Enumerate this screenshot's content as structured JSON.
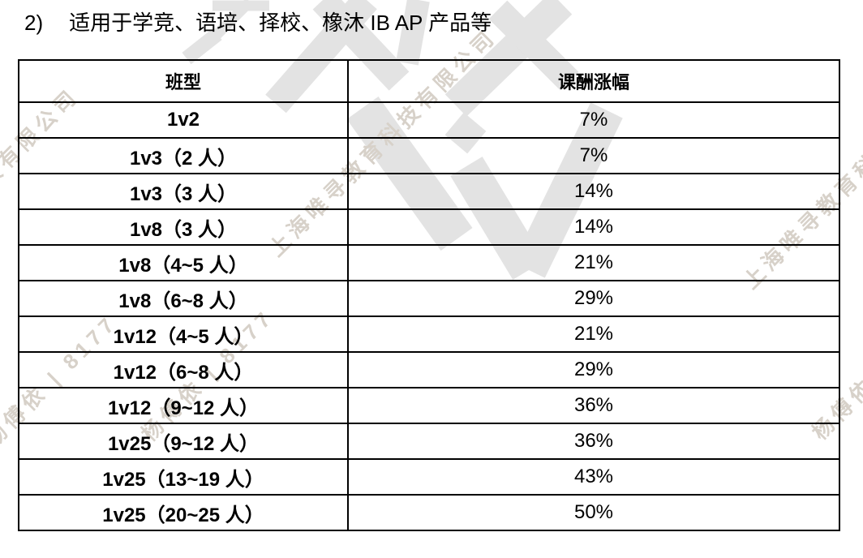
{
  "heading": {
    "number": "2)",
    "text": "适用于学竞、语培、择校、橡沐 IB AP 产品等"
  },
  "table": {
    "headers": [
      "班型",
      "课酬涨幅"
    ],
    "rows": [
      [
        "1v2",
        "7%"
      ],
      [
        "1v3（2 人）",
        "7%"
      ],
      [
        "1v3（3 人）",
        "14%"
      ],
      [
        "1v8（3 人）",
        "14%"
      ],
      [
        "1v8（4~5 人）",
        "21%"
      ],
      [
        "1v8（6~8 人）",
        "29%"
      ],
      [
        "1v12（4~5 人）",
        "21%"
      ],
      [
        "1v12（6~8 人）",
        "29%"
      ],
      [
        "1v12（9~12 人）",
        "36%"
      ],
      [
        "1v25（9~12 人）",
        "36%"
      ],
      [
        "1v25（13~19 人）",
        "43%"
      ],
      [
        "1v25（20~25 人）",
        "50%"
      ]
    ]
  },
  "watermarks": {
    "company_text": "上海唯寻教育科技有限公司",
    "author_text": "杨傅依 | 8177",
    "text_color": "#d7d1c9",
    "logo_color": "#e3e3e3"
  }
}
